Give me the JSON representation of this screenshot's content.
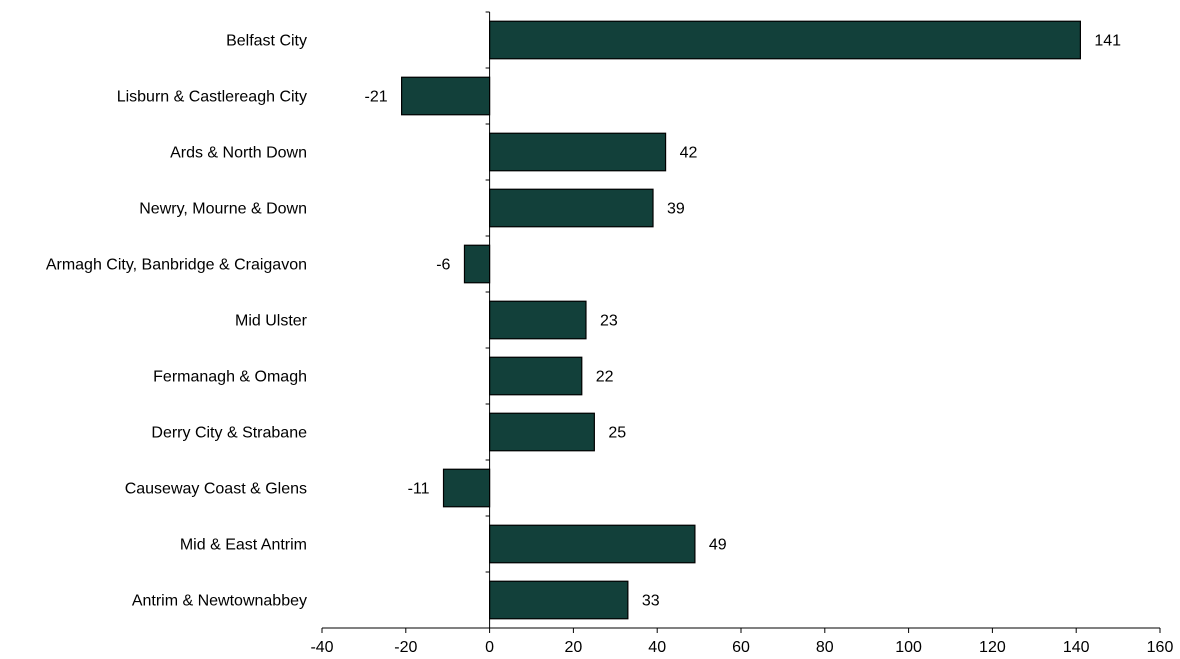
{
  "chart_data": {
    "type": "bar",
    "orientation": "horizontal",
    "title": "",
    "xlabel": "",
    "ylabel": "",
    "categories": [
      "Belfast City",
      "Lisburn & Castlereagh City",
      "Ards & North Down",
      "Newry, Mourne & Down",
      "Armagh City, Banbridge & Craigavon",
      "Mid Ulster",
      "Fermanagh & Omagh",
      "Derry City & Strabane",
      "Causeway Coast & Glens",
      "Mid & East Antrim",
      "Antrim & Newtownabbey"
    ],
    "values": [
      141,
      -21,
      42,
      39,
      -6,
      23,
      22,
      25,
      -11,
      49,
      33
    ],
    "xlim": [
      -40,
      160
    ],
    "xticks": [
      -40,
      -20,
      0,
      20,
      40,
      60,
      80,
      100,
      120,
      140,
      160
    ],
    "grid": false,
    "legend": "none",
    "bar_color": "#12403a"
  }
}
